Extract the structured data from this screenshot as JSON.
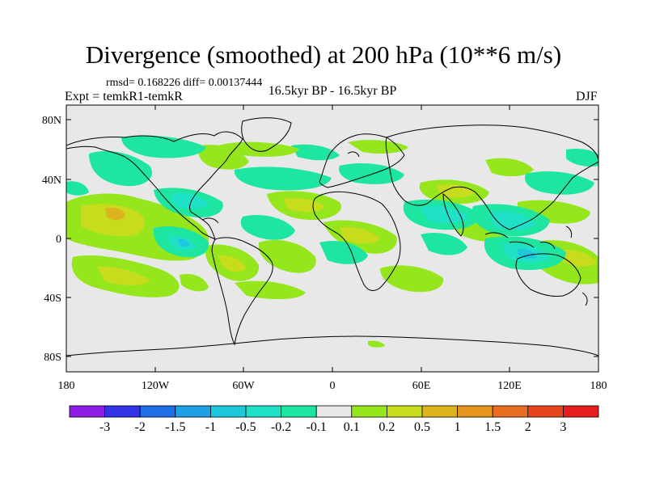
{
  "header": {
    "title": "Divergence (smoothed) at 200 hPa (10**6 m/s)",
    "stats": "rmsd= 0.168226 diff= 0.00137444",
    "experiment": "Expt = temkR1-temkR",
    "period": "16.5kyr BP - 16.5kyr BP",
    "season": "DJF"
  },
  "axes": {
    "lat_labels": [
      "80N",
      "40N",
      "0",
      "40S",
      "80S"
    ],
    "lon_labels": [
      "180",
      "120W",
      "60W",
      "0",
      "60E",
      "120E",
      "180"
    ]
  },
  "colorbar": {
    "labels": [
      "-3",
      "-2",
      "-1.5",
      "-1",
      "-0.5",
      "-0.2",
      "-0.1",
      "0.1",
      "0.2",
      "0.5",
      "1",
      "1.5",
      "2",
      "3"
    ],
    "colors": [
      "#8e1ee6",
      "#3232e6",
      "#1e6ee6",
      "#1ea0e6",
      "#1ec8dc",
      "#1ee1c8",
      "#1ee6a0",
      "#e8e8e8",
      "#96e61e",
      "#c8dc1e",
      "#dcb41e",
      "#e6961e",
      "#e66e1e",
      "#e6461e",
      "#e61e1e"
    ]
  },
  "map": {
    "background": "#e8e8e8",
    "coast_color": "#000000"
  }
}
